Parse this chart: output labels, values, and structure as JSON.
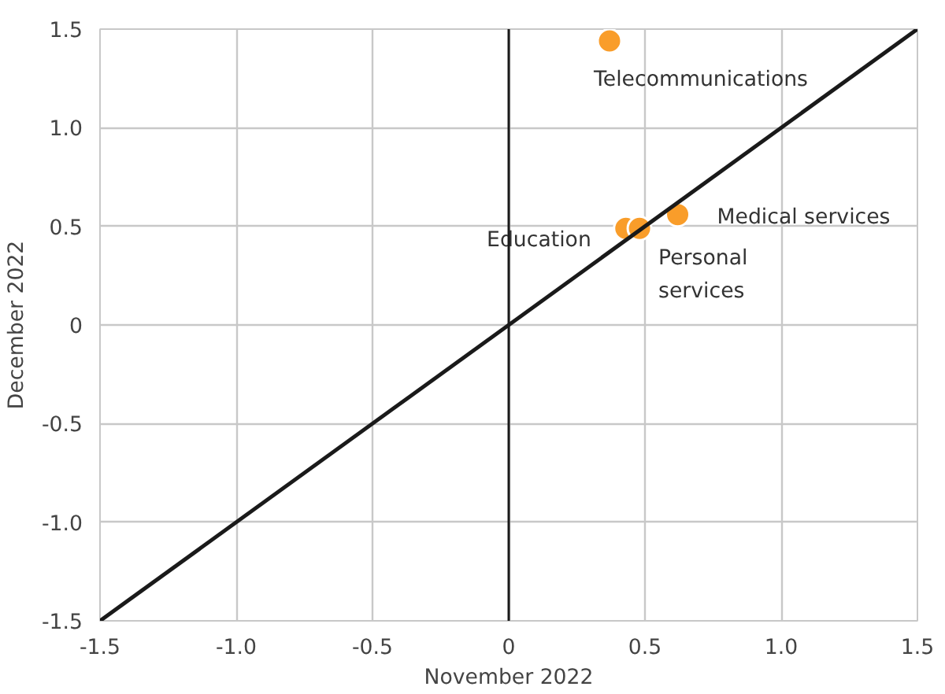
{
  "chart_data": {
    "type": "scatter",
    "xlabel": "November 2022",
    "ylabel": "December 2022",
    "series": [
      {
        "marker": "circle",
        "color": "#f99d2a",
        "x": [
          0.37,
          0.43,
          0.48,
          0.62
        ],
        "values": [
          1.44,
          0.49,
          0.49,
          0.56
        ]
      },
      {
        "type": "line",
        "color": "#1a1a1a",
        "x": [
          -1.5,
          1.5
        ],
        "values": [
          -1.5,
          1.5
        ]
      }
    ],
    "annotations": [
      {
        "text": "Telecommunications",
        "x": 0.37,
        "y": 1.44
      },
      {
        "text": "Education",
        "x": 0.43,
        "y": 0.49
      },
      {
        "text": "Personal\nservices",
        "x": 0.48,
        "y": 0.49
      },
      {
        "text": "Medical services",
        "x": 0.62,
        "y": 0.56
      }
    ],
    "ref_lines": [
      {
        "axis": "x",
        "value": 0,
        "color": "#1a1a1a"
      }
    ],
    "xlim": [
      -1.5,
      1.5
    ],
    "ylim": [
      -1.5,
      1.5
    ],
    "xticks": [
      -1.5,
      {
        "value": -1.0,
        "label": "-1.0"
      },
      -0.5,
      0,
      0.5,
      {
        "value": 1.0,
        "label": "1.0"
      },
      1.5
    ],
    "yticks": [
      -1.5,
      {
        "value": -1.0,
        "label": "-1.0"
      },
      -0.5,
      0,
      0.5,
      {
        "value": 1.0,
        "label": "1.0"
      },
      1.5
    ],
    "grid": true,
    "line_style": "solid"
  }
}
